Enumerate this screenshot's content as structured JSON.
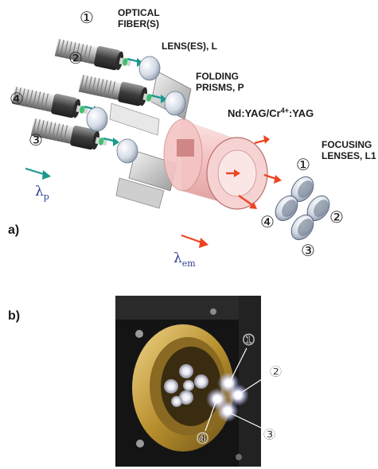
{
  "panel_a": {
    "panel_label": "a)",
    "labels": {
      "optical_fibers": [
        "OPTICAL",
        "FIBER(S)"
      ],
      "lenses": "LENS(ES), L",
      "folding_prisms": [
        "FOLDING",
        "PRISMS, P"
      ],
      "crystal_prefix": "Nd:YAG/Cr",
      "crystal_superscript": "4+",
      "crystal_suffix": ":YAG",
      "focusing_lenses": [
        "FOCUSING",
        "LENSES, L1"
      ]
    },
    "pump_wavelength": {
      "symbol": "λ",
      "subscript": "p"
    },
    "emission_wavelength": {
      "symbol": "λ",
      "subscript": "em"
    },
    "fiber_numbers": [
      "①",
      "②",
      "③",
      "④"
    ],
    "output_numbers": [
      "①",
      "②",
      "③",
      "④"
    ],
    "colors": {
      "pump_arrow": "#1a9a8e",
      "emission_arrow": "#ee4422",
      "crystal": "#f3b8b8"
    }
  },
  "panel_b": {
    "panel_label": "b)",
    "beam_numbers": [
      "①",
      "②",
      "③",
      "④"
    ]
  }
}
